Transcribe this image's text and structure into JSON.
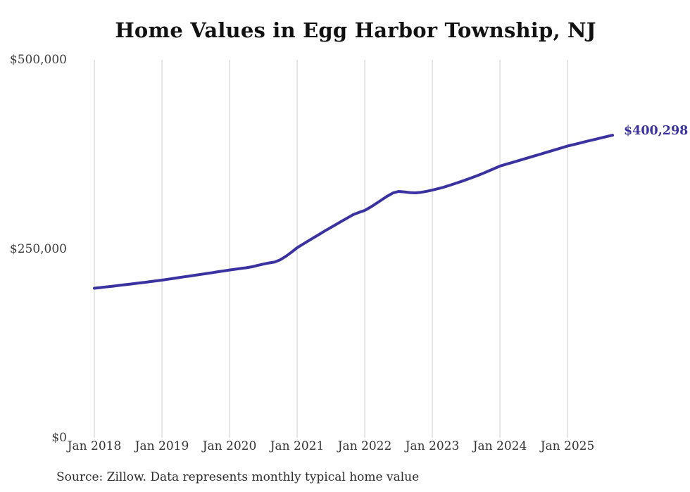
{
  "chart_data": {
    "type": "line",
    "title": "Home Values in Egg Harbor Township, NJ",
    "x_start": "Jan 2018",
    "x_end": "Sep 2025",
    "x_interval": "month",
    "values": [
      197900,
      198700,
      199500,
      200300,
      201200,
      202100,
      203000,
      203900,
      204800,
      205700,
      206700,
      207600,
      208600,
      209700,
      210800,
      211900,
      213000,
      214100,
      215200,
      216300,
      217400,
      218500,
      219700,
      220800,
      222000,
      223000,
      224000,
      225000,
      226300,
      228000,
      229800,
      231300,
      232500,
      235500,
      240000,
      245500,
      251400,
      256000,
      260500,
      265000,
      269500,
      274000,
      278300,
      282600,
      286900,
      291200,
      295300,
      298200,
      300700,
      305000,
      309800,
      314700,
      319600,
      323800,
      325900,
      325300,
      324400,
      324000,
      324800,
      326100,
      327700,
      329500,
      331500,
      333800,
      336200,
      338700,
      341300,
      344000,
      346800,
      349800,
      353000,
      356200,
      359400,
      361600,
      363800,
      366000,
      368200,
      370400,
      372600,
      374800,
      377000,
      379200,
      381500,
      383700,
      385900,
      387700,
      389500,
      391400,
      393200,
      395000,
      396800,
      398600,
      400298
    ],
    "x_tick_labels": [
      "Jan 2018",
      "Jan 2019",
      "Jan 2020",
      "Jan 2021",
      "Jan 2022",
      "Jan 2023",
      "Jan 2024",
      "Jan 2025"
    ],
    "y_tick_labels": [
      "$0",
      "$250,000",
      "$500,000"
    ],
    "y_tick_values": [
      0,
      250000,
      500000
    ],
    "ylim": [
      0,
      500000
    ],
    "grid": "vertical-only",
    "legend": "none",
    "end_label": "$400,298",
    "line_color": "#3b32a2",
    "grid_color": "#cccccc",
    "source_note": "Source: Zillow. Data represents monthly typical home value"
  }
}
